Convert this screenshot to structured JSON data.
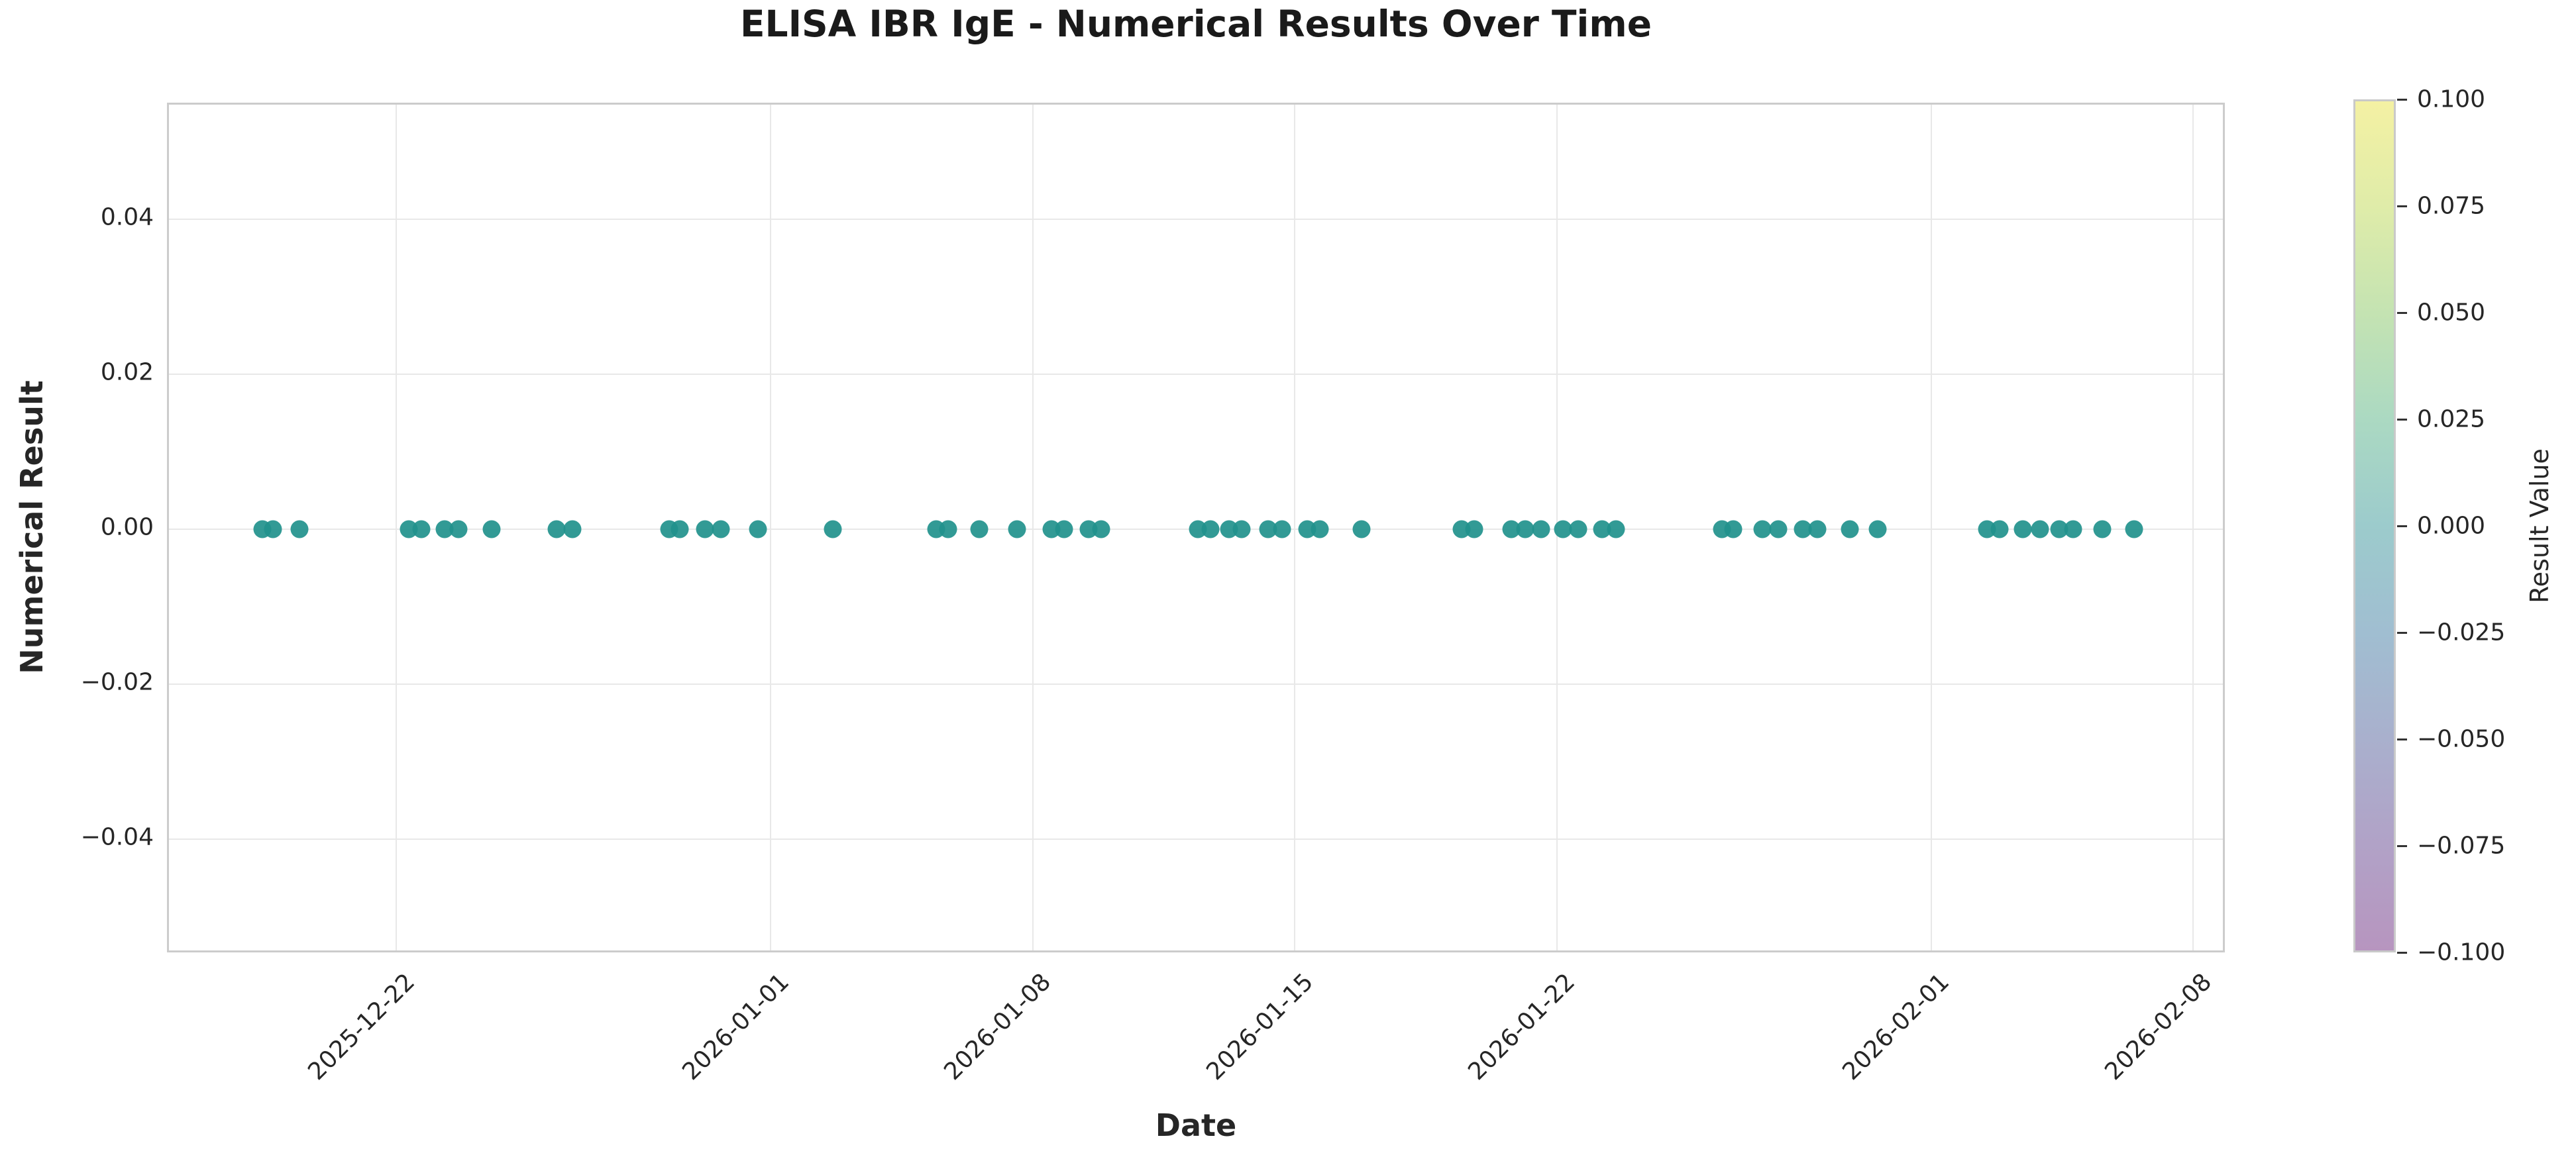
{
  "chart": {
    "title": "ELISA IBR IgE - Numerical Results Over Time",
    "xlabel": "Date",
    "ylabel": "Numerical Result",
    "colorbar_label": "Result Value"
  },
  "chart_data": {
    "type": "scatter",
    "title": "ELISA IBR IgE - Numerical Results Over Time",
    "xlabel": "Date",
    "ylabel": "Numerical Result",
    "grid": true,
    "ylim": [
      -0.055,
      0.055
    ],
    "xlim": [
      "2025-12-16",
      "2026-02-09"
    ],
    "y_ticks": [
      {
        "label": "0.04",
        "value": 0.04
      },
      {
        "label": "0.02",
        "value": 0.02
      },
      {
        "label": "0.00",
        "value": 0.0
      },
      {
        "label": "−0.02",
        "value": -0.02
      },
      {
        "label": "−0.04",
        "value": -0.04
      }
    ],
    "x_ticks": [
      {
        "label": "2025-12-22",
        "date": "2025-12-22"
      },
      {
        "label": "2026-01-01",
        "date": "2026-01-01"
      },
      {
        "label": "2026-01-08",
        "date": "2026-01-08"
      },
      {
        "label": "2026-01-15",
        "date": "2026-01-15"
      },
      {
        "label": "2026-01-22",
        "date": "2026-01-22"
      },
      {
        "label": "2026-02-01",
        "date": "2026-02-01"
      },
      {
        "label": "2026-02-08",
        "date": "2026-02-08"
      }
    ],
    "marker_color": "#21918c",
    "colorbar": {
      "label": "Result Value",
      "min": -0.1,
      "max": 0.1,
      "tick_labels": [
        "0.100",
        "0.075",
        "0.050",
        "0.025",
        "0.000",
        "−0.025",
        "−0.050",
        "−0.075",
        "−0.100"
      ],
      "tick_values": [
        0.1,
        0.075,
        0.05,
        0.025,
        0.0,
        -0.025,
        -0.05,
        -0.075,
        -0.1
      ],
      "colormap": "viridis (semi-transparent)",
      "gradient_top_to_bottom": [
        "#f4f1a3",
        "#dfeca9",
        "#c4e3b2",
        "#abd9c2",
        "#9ccbcc",
        "#a0bed1",
        "#a9b0cd",
        "#b1a2c7",
        "#b795bf"
      ]
    },
    "points": [
      {
        "date": "2025-12-18 10:00",
        "value": 0.0
      },
      {
        "date": "2025-12-18 17:00",
        "value": 0.0
      },
      {
        "date": "2025-12-19 10:00",
        "value": 0.0
      },
      {
        "date": "2025-12-22 08:00",
        "value": 0.0
      },
      {
        "date": "2025-12-22 16:00",
        "value": 0.0
      },
      {
        "date": "2025-12-23 07:00",
        "value": 0.0
      },
      {
        "date": "2025-12-23 16:00",
        "value": 0.0
      },
      {
        "date": "2025-12-24 13:00",
        "value": 0.0
      },
      {
        "date": "2025-12-26 07:00",
        "value": 0.0
      },
      {
        "date": "2025-12-26 17:00",
        "value": 0.0
      },
      {
        "date": "2025-12-29 07:00",
        "value": 0.0
      },
      {
        "date": "2025-12-29 14:00",
        "value": 0.0
      },
      {
        "date": "2025-12-30 06:00",
        "value": 0.0
      },
      {
        "date": "2025-12-30 16:00",
        "value": 0.0
      },
      {
        "date": "2025-12-31 16:00",
        "value": 0.0
      },
      {
        "date": "2026-01-02 16:00",
        "value": 0.0
      },
      {
        "date": "2026-01-05 10:00",
        "value": 0.0
      },
      {
        "date": "2026-01-05 18:00",
        "value": 0.0
      },
      {
        "date": "2026-01-06 14:00",
        "value": 0.0
      },
      {
        "date": "2026-01-07 14:00",
        "value": 0.0
      },
      {
        "date": "2026-01-08 12:00",
        "value": 0.0
      },
      {
        "date": "2026-01-08 20:00",
        "value": 0.0
      },
      {
        "date": "2026-01-09 12:00",
        "value": 0.0
      },
      {
        "date": "2026-01-09 20:00",
        "value": 0.0
      },
      {
        "date": "2026-01-12 10:00",
        "value": 0.0
      },
      {
        "date": "2026-01-12 18:00",
        "value": 0.0
      },
      {
        "date": "2026-01-13 06:00",
        "value": 0.0
      },
      {
        "date": "2026-01-13 14:00",
        "value": 0.0
      },
      {
        "date": "2026-01-14 07:00",
        "value": 0.0
      },
      {
        "date": "2026-01-14 16:00",
        "value": 0.0
      },
      {
        "date": "2026-01-15 08:00",
        "value": 0.0
      },
      {
        "date": "2026-01-15 16:00",
        "value": 0.0
      },
      {
        "date": "2026-01-16 19:00",
        "value": 0.0
      },
      {
        "date": "2026-01-19 11:00",
        "value": 0.0
      },
      {
        "date": "2026-01-19 19:00",
        "value": 0.0
      },
      {
        "date": "2026-01-20 19:00",
        "value": 0.0
      },
      {
        "date": "2026-01-21 04:00",
        "value": 0.0
      },
      {
        "date": "2026-01-21 14:00",
        "value": 0.0
      },
      {
        "date": "2026-01-22 04:00",
        "value": 0.0
      },
      {
        "date": "2026-01-22 14:00",
        "value": 0.0
      },
      {
        "date": "2026-01-23 05:00",
        "value": 0.0
      },
      {
        "date": "2026-01-23 14:00",
        "value": 0.0
      },
      {
        "date": "2026-01-26 10:00",
        "value": 0.0
      },
      {
        "date": "2026-01-26 17:00",
        "value": 0.0
      },
      {
        "date": "2026-01-27 12:00",
        "value": 0.0
      },
      {
        "date": "2026-01-27 22:00",
        "value": 0.0
      },
      {
        "date": "2026-01-28 14:00",
        "value": 0.0
      },
      {
        "date": "2026-01-28 23:00",
        "value": 0.0
      },
      {
        "date": "2026-01-29 20:00",
        "value": 0.0
      },
      {
        "date": "2026-01-30 14:00",
        "value": 0.0
      },
      {
        "date": "2026-02-02 12:00",
        "value": 0.0
      },
      {
        "date": "2026-02-02 20:00",
        "value": 0.0
      },
      {
        "date": "2026-02-03 11:00",
        "value": 0.0
      },
      {
        "date": "2026-02-03 22:00",
        "value": 0.0
      },
      {
        "date": "2026-02-04 10:00",
        "value": 0.0
      },
      {
        "date": "2026-02-04 19:00",
        "value": 0.0
      },
      {
        "date": "2026-02-05 14:00",
        "value": 0.0
      },
      {
        "date": "2026-02-06 10:00",
        "value": 0.0
      }
    ]
  }
}
